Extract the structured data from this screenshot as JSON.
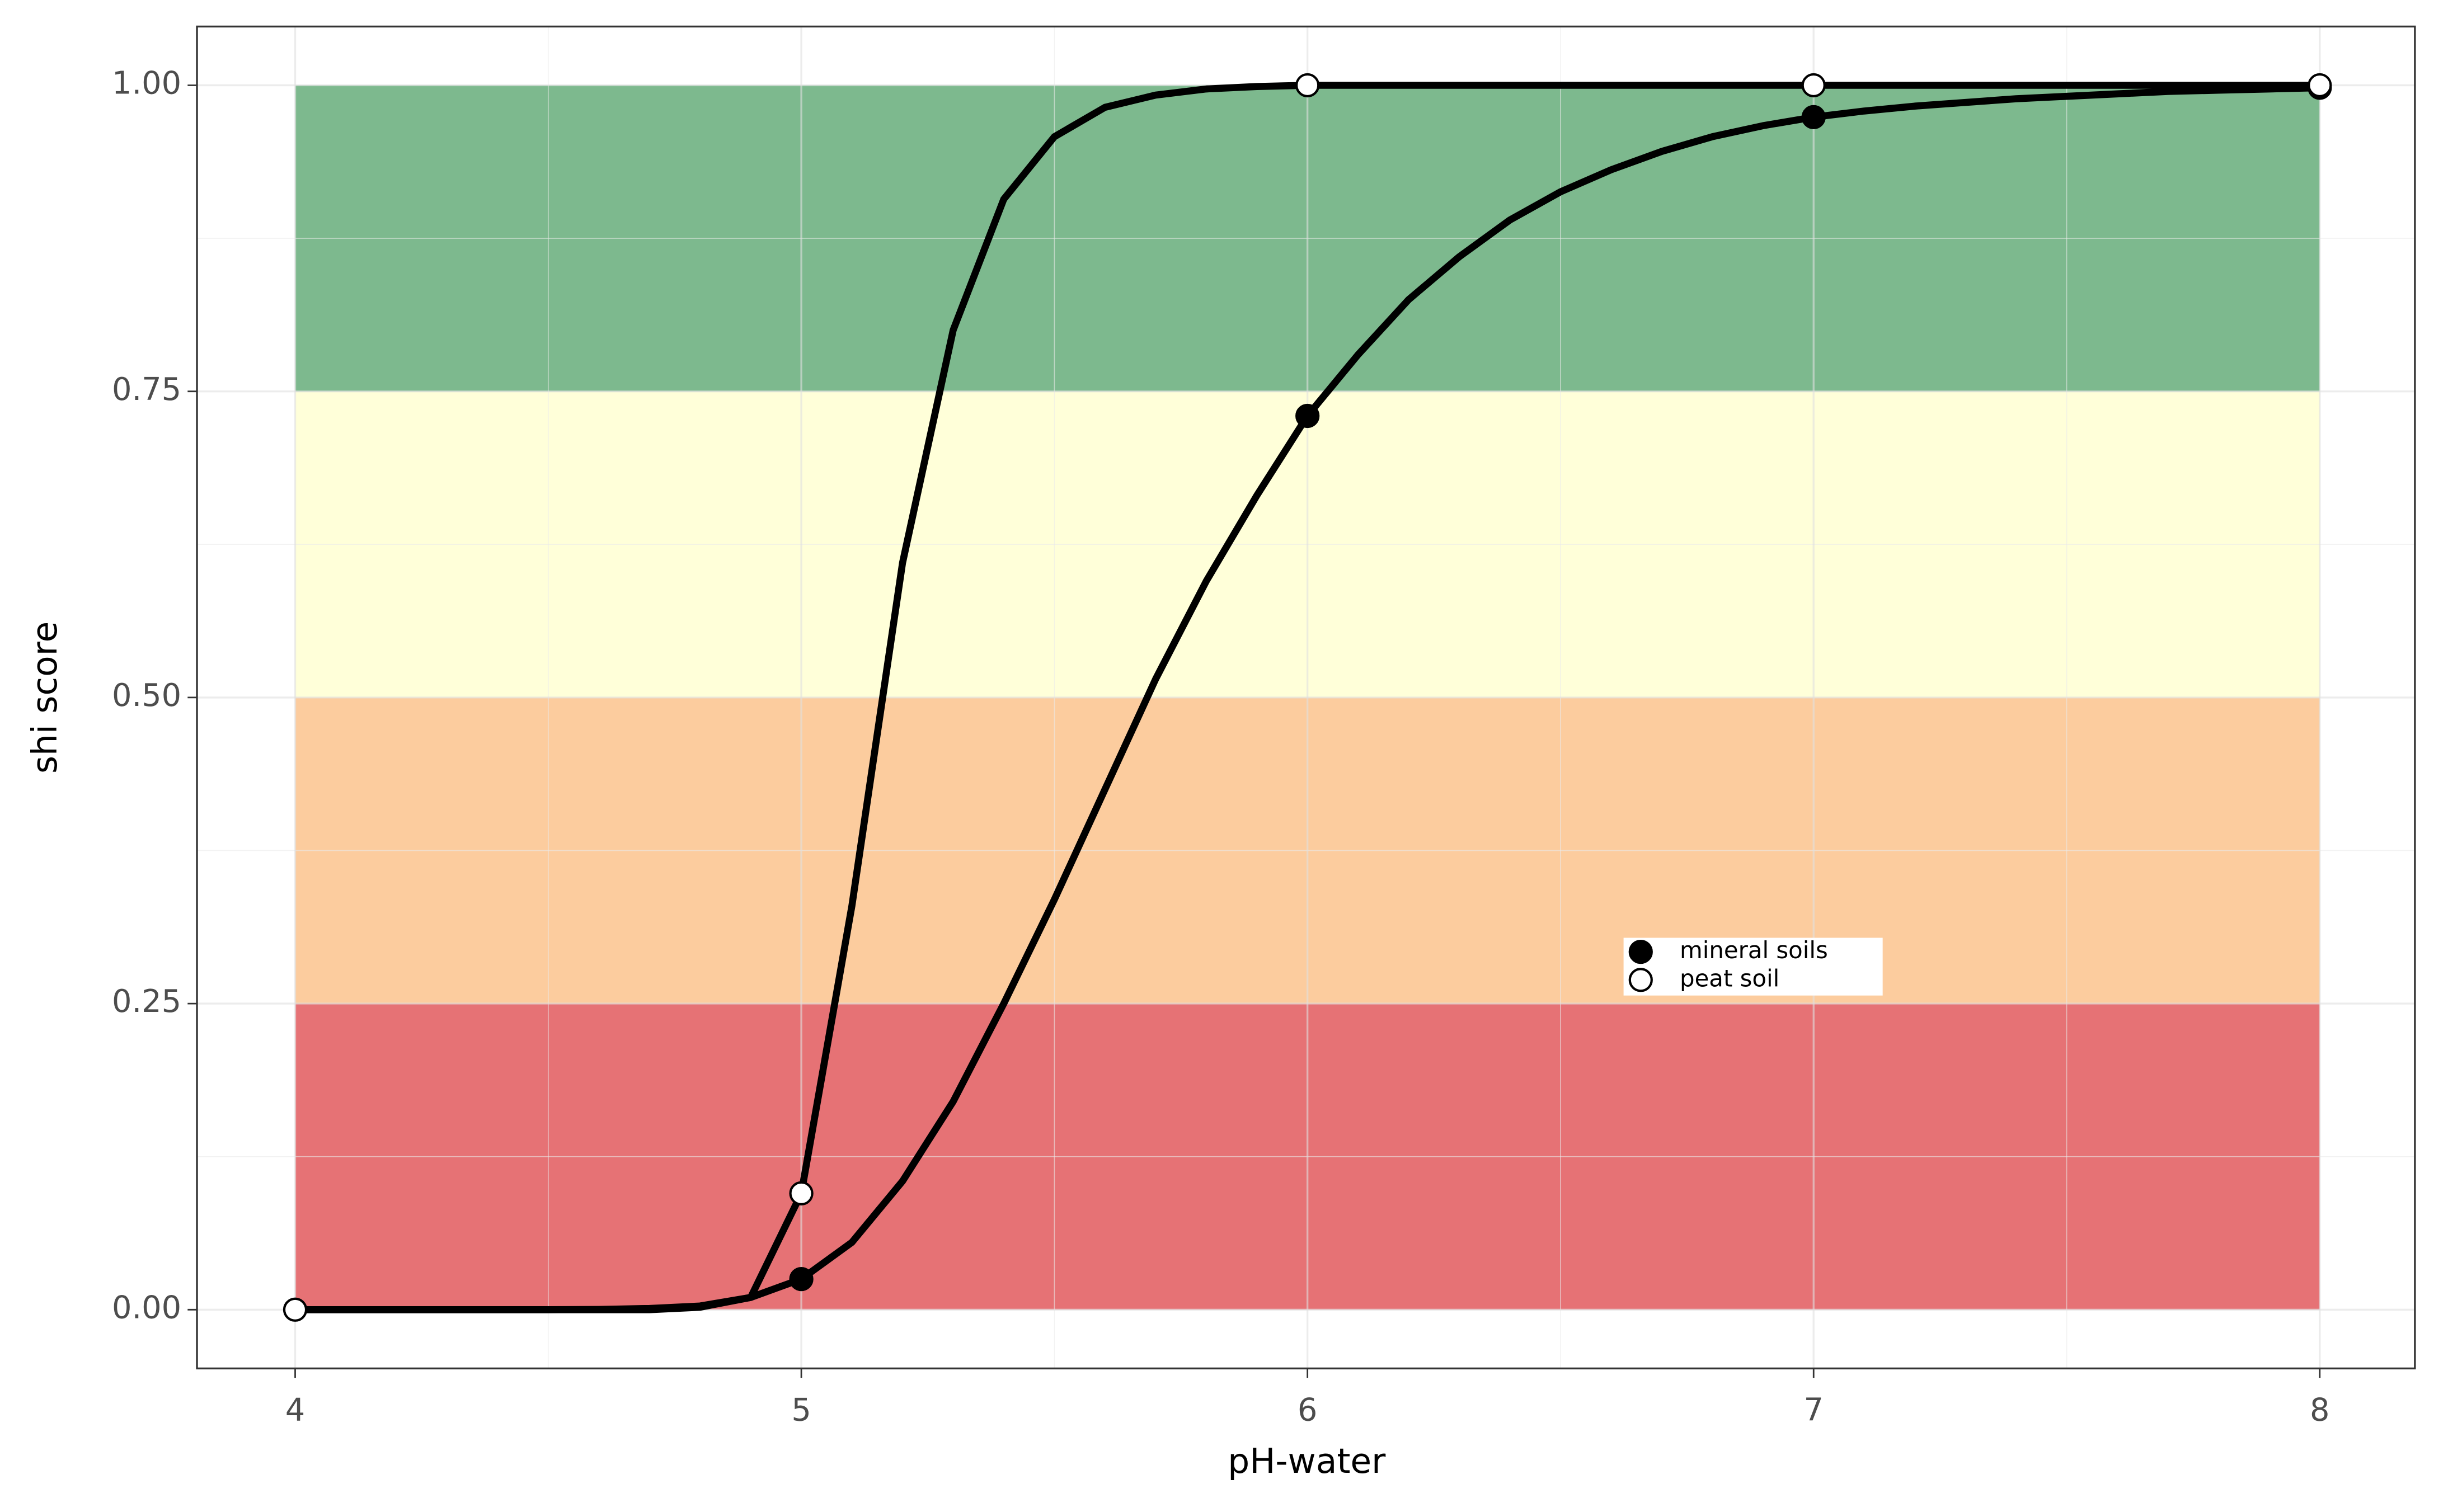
{
  "chart_data": {
    "type": "line",
    "x_label": "pH-water",
    "y_label": "shi score",
    "xlim": [
      3.806,
      8.188
    ],
    "ylim": [
      -0.048,
      1.048
    ],
    "xticks": [
      4,
      5,
      6,
      7,
      8
    ],
    "yticks": [
      {
        "value": 0,
        "label": "0.00"
      },
      {
        "value": 0.25,
        "label": "0.25"
      },
      {
        "value": 0.5,
        "label": "0.50"
      },
      {
        "value": 0.75,
        "label": "0.75"
      },
      {
        "value": 1,
        "label": "1.00"
      }
    ],
    "minor_xticks": [
      4.5,
      5.5,
      6.5,
      7.5
    ],
    "minor_yticks": [
      0.125,
      0.375,
      0.625,
      0.875
    ],
    "grid": true,
    "bands": {
      "x": [
        4,
        8
      ],
      "ranges": [
        {
          "ymin": 0,
          "ymax": 0.25,
          "color": "#e67275"
        },
        {
          "ymin": 0.25,
          "ymax": 0.5,
          "color": "#fccc9e"
        },
        {
          "ymin": 0.5,
          "ymax": 0.75,
          "color": "#ffffd9"
        },
        {
          "ymin": 0.75,
          "ymax": 1,
          "color": "#7db98e"
        }
      ]
    },
    "x": [
      4,
      4.1,
      4.2,
      4.3,
      4.4,
      4.5,
      4.6,
      4.7,
      4.8,
      4.9,
      5,
      5.1,
      5.2,
      5.3,
      5.4,
      5.5,
      5.6,
      5.7,
      5.8,
      5.9,
      6,
      6.1,
      6.2,
      6.3,
      6.4,
      6.5,
      6.6,
      6.7,
      6.8,
      6.9,
      7,
      7.1,
      7.2,
      7.3,
      7.4,
      7.5,
      7.6,
      7.7,
      7.8,
      7.9,
      8
    ],
    "lines": [
      {
        "color": "#000000",
        "values": [
          0,
          0,
          0,
          0,
          0,
          0,
          0.0002,
          0.001,
          0.003,
          0.01,
          0.025,
          0.055,
          0.105,
          0.17,
          0.25,
          0.335,
          0.425,
          0.515,
          0.595,
          0.665,
          0.73,
          0.78,
          0.825,
          0.86,
          0.89,
          0.913,
          0.931,
          0.946,
          0.958,
          0.967,
          0.974,
          0.979,
          0.983,
          0.986,
          0.989,
          0.991,
          0.993,
          0.995,
          0.996,
          0.997,
          0.998
        ]
      },
      {
        "color": "#000000",
        "values": [
          0,
          0,
          0,
          0,
          0,
          0,
          0,
          0,
          0.002,
          0.01,
          0.095,
          0.33,
          0.61,
          0.8,
          0.907,
          0.958,
          0.982,
          0.992,
          0.997,
          0.999,
          1,
          1,
          1,
          1,
          1,
          1,
          1,
          1,
          1,
          1,
          1,
          1,
          1,
          1,
          1,
          1,
          1,
          1,
          1,
          1,
          1
        ]
      }
    ],
    "series": [
      {
        "name": "mineral soils",
        "color": "#000000",
        "x": [
          5,
          6,
          7,
          8
        ],
        "values": [
          0.025,
          0.73,
          0.974,
          0.998
        ]
      },
      {
        "name": "peat soil",
        "color": "#ffffff",
        "x": [
          4,
          5,
          6,
          7,
          8
        ],
        "values": [
          0,
          0.095,
          1,
          1,
          1
        ]
      }
    ],
    "legend": "inside"
  }
}
